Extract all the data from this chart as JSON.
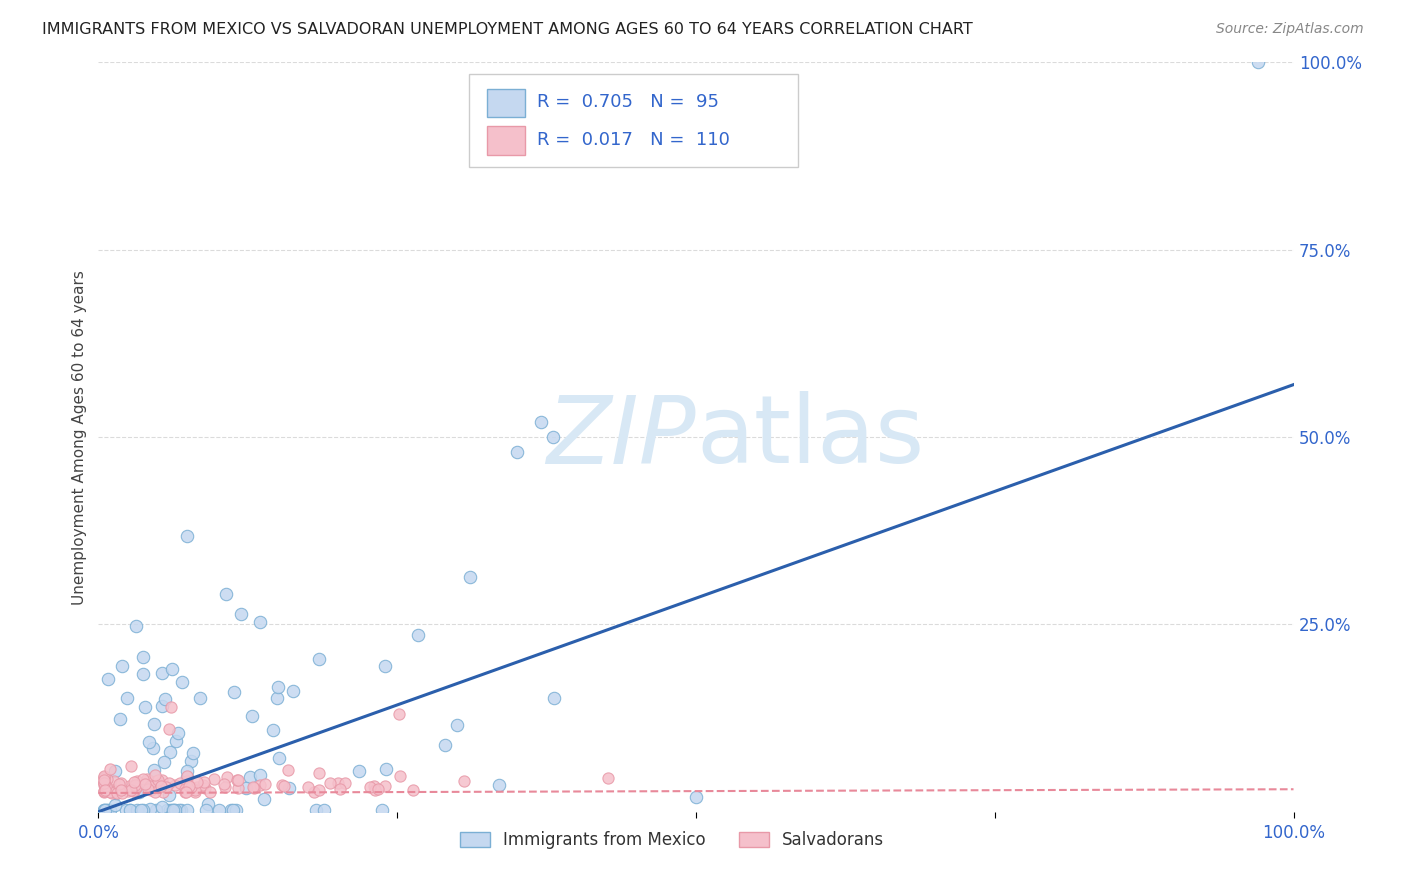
{
  "title": "IMMIGRANTS FROM MEXICO VS SALVADORAN UNEMPLOYMENT AMONG AGES 60 TO 64 YEARS CORRELATION CHART",
  "source": "Source: ZipAtlas.com",
  "ylabel": "Unemployment Among Ages 60 to 64 years",
  "xlim": [
    0,
    1.0
  ],
  "ylim": [
    0,
    1.0
  ],
  "blue_R": 0.705,
  "blue_N": 95,
  "pink_R": 0.017,
  "pink_N": 110,
  "blue_fill_color": "#C5D8F0",
  "blue_edge_color": "#7BAFD4",
  "pink_fill_color": "#F5C0CB",
  "pink_edge_color": "#E899A8",
  "blue_line_color": "#2B5FAC",
  "pink_line_color": "#E8899A",
  "watermark_color": "#D8E8F5",
  "background_color": "#FFFFFF",
  "grid_color": "#CCCCCC",
  "text_color": "#3366CC",
  "title_color": "#222222",
  "legend_text_color": "#333333",
  "blue_line_x": [
    0.0,
    1.0
  ],
  "blue_line_y": [
    0.0,
    0.57
  ],
  "pink_line_x": [
    0.0,
    1.0
  ],
  "pink_line_y": [
    0.025,
    0.03
  ]
}
